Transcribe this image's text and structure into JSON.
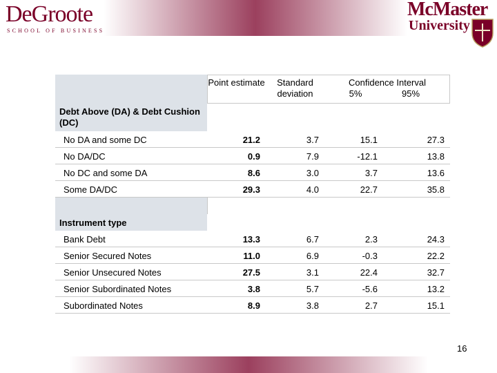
{
  "header": {
    "left_logo": {
      "name": "DeGroote",
      "subtitle": "SCHOOL OF BUSINESS"
    },
    "right_logo": {
      "name": "McMaster",
      "subtitle": "University"
    }
  },
  "table": {
    "columns": [
      "Point estimate",
      "Standard deviation",
      "Confidence Interval"
    ],
    "ci_columns": [
      "5%",
      "95%"
    ],
    "sections": [
      {
        "title": "Debt Above (DA) & Debt Cushion (DC)",
        "rows": [
          [
            "No DA and some DC",
            "21.2",
            "3.7",
            "15.1",
            "27.3"
          ],
          [
            "No DA/DC",
            "0.9",
            "7.9",
            "-12.1",
            "13.8"
          ],
          [
            "No DC and some DA",
            "8.6",
            "3.0",
            "3.7",
            "13.6"
          ],
          [
            "Some DA/DC",
            "29.3",
            "4.0",
            "22.7",
            "35.8"
          ]
        ]
      },
      {
        "title": "Instrument type",
        "rows": [
          [
            "Bank Debt",
            "13.3",
            "6.7",
            "2.3",
            "24.3"
          ],
          [
            "Senior Secured Notes",
            "11.0",
            "6.9",
            "-0.3",
            "22.2"
          ],
          [
            "Senior Unsecured Notes",
            "27.5",
            "3.1",
            "22.4",
            "32.7"
          ],
          [
            "Senior Subordinated Notes",
            "3.8",
            "5.7",
            "-5.6",
            "13.2"
          ],
          [
            "Subordinated Notes",
            "8.9",
            "3.8",
            "2.7",
            "15.1"
          ]
        ]
      }
    ]
  },
  "page_number": "16"
}
